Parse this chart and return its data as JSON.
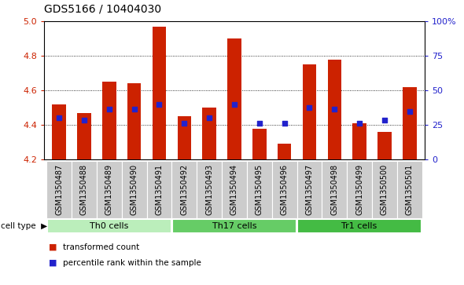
{
  "title": "GDS5166 / 10404030",
  "categories": [
    "GSM1350487",
    "GSM1350488",
    "GSM1350489",
    "GSM1350490",
    "GSM1350491",
    "GSM1350492",
    "GSM1350493",
    "GSM1350494",
    "GSM1350495",
    "GSM1350496",
    "GSM1350497",
    "GSM1350498",
    "GSM1350499",
    "GSM1350500",
    "GSM1350501"
  ],
  "bar_values": [
    4.52,
    4.47,
    4.65,
    4.64,
    4.97,
    4.45,
    4.5,
    4.9,
    4.38,
    4.29,
    4.75,
    4.78,
    4.41,
    4.36,
    4.62
  ],
  "dot_values": [
    4.44,
    4.43,
    4.49,
    4.49,
    4.52,
    4.41,
    4.44,
    4.52,
    4.41,
    4.41,
    4.5,
    4.49,
    4.41,
    4.43,
    4.48
  ],
  "bar_bottom": 4.2,
  "ylim": [
    4.2,
    5.0
  ],
  "yticks_left": [
    4.2,
    4.4,
    4.6,
    4.8,
    5.0
  ],
  "yticks_right_vals": [
    0,
    25,
    50,
    75,
    100
  ],
  "bar_color": "#cc2200",
  "dot_color": "#2222cc",
  "groups": [
    {
      "label": "Th0 cells",
      "start": 0,
      "end": 4,
      "color": "#bbeebb"
    },
    {
      "label": "Th17 cells",
      "start": 5,
      "end": 9,
      "color": "#66cc66"
    },
    {
      "label": "Tr1 cells",
      "start": 10,
      "end": 14,
      "color": "#44bb44"
    }
  ],
  "cell_type_label": "cell type",
  "legend_bar_label": "transformed count",
  "legend_dot_label": "percentile rank within the sample",
  "tick_label_bg": "#cccccc",
  "title_fontsize": 10,
  "tick_fontsize": 8,
  "label_fontsize": 7
}
